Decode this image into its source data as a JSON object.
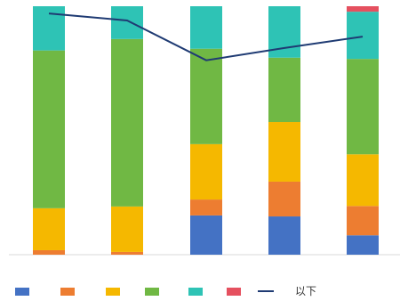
{
  "chart_data": {
    "type": "bar",
    "stacked": true,
    "categories": [
      "",
      "",
      "",
      "",
      ""
    ],
    "ylim": [
      0,
      100
    ],
    "grid": false,
    "legend_position": "bottom",
    "series": [
      {
        "name": "",
        "color": "#4472c4",
        "values": [
          0,
          0,
          15.8,
          15.4,
          7.8
        ]
      },
      {
        "name": "",
        "color": "#ed7d31",
        "values": [
          1.8,
          1.1,
          6.4,
          14.0,
          11.8
        ]
      },
      {
        "name": "",
        "color": "#f5b800",
        "values": [
          16.9,
          18.3,
          22.3,
          24.0,
          20.8
        ]
      },
      {
        "name": "",
        "color": "#70b844",
        "values": [
          63.5,
          67.4,
          38.4,
          25.9,
          38.4
        ]
      },
      {
        "name": "",
        "color": "#2ec3b5",
        "values": [
          17.8,
          13.2,
          17.1,
          20.7,
          19.0
        ]
      },
      {
        "name": "",
        "color": "#e5505f",
        "values": [
          0,
          0,
          0,
          0,
          2.2
        ]
      }
    ],
    "line_series": {
      "name": "以下",
      "color": "#1f3b73",
      "values": [
        100,
        97.1,
        80.6,
        85.7,
        90.4
      ],
      "ylim": [
        0,
        103
      ]
    }
  }
}
